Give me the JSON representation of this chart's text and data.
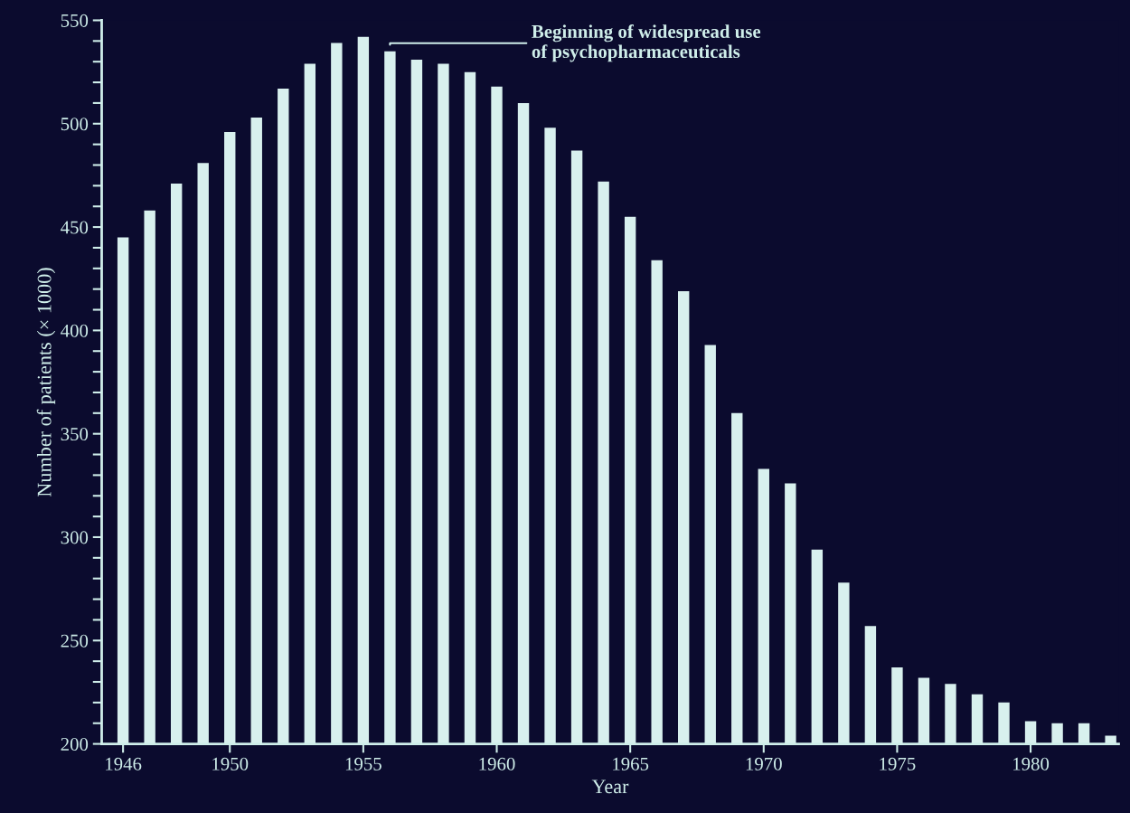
{
  "chart_data": {
    "type": "bar",
    "xlabel": "Year",
    "ylabel": "Number of patients (× 1000)",
    "x": [
      1946,
      1947,
      1948,
      1949,
      1950,
      1951,
      1952,
      1953,
      1954,
      1955,
      1956,
      1957,
      1958,
      1959,
      1960,
      1961,
      1962,
      1963,
      1964,
      1965,
      1966,
      1967,
      1968,
      1969,
      1970,
      1971,
      1972,
      1973,
      1974,
      1975,
      1976,
      1977,
      1978,
      1979,
      1980,
      1981,
      1982,
      1983
    ],
    "values": [
      445,
      458,
      471,
      481,
      496,
      503,
      517,
      529,
      539,
      542,
      535,
      531,
      529,
      525,
      518,
      510,
      498,
      487,
      472,
      455,
      434,
      419,
      393,
      360,
      333,
      326,
      294,
      278,
      257,
      237,
      232,
      229,
      224,
      220,
      211,
      210,
      210,
      204
    ],
    "color": "#d8f0ee",
    "xlim": [
      1945.2,
      1983.3
    ],
    "xticks": [
      1946,
      1950,
      1955,
      1960,
      1965,
      1970,
      1975,
      1980
    ],
    "ylim": [
      200,
      550
    ],
    "yticks": [
      200,
      {
        "value": 210,
        "label": null
      },
      {
        "value": 220,
        "label": null
      },
      {
        "value": 230,
        "label": null
      },
      {
        "value": 240,
        "label": null
      },
      250,
      {
        "value": 260,
        "label": null
      },
      {
        "value": 270,
        "label": null
      },
      {
        "value": 280,
        "label": null
      },
      {
        "value": 290,
        "label": null
      },
      300,
      {
        "value": 310,
        "label": null
      },
      {
        "value": 320,
        "label": null
      },
      {
        "value": 330,
        "label": null
      },
      {
        "value": 340,
        "label": null
      },
      350,
      {
        "value": 360,
        "label": null
      },
      {
        "value": 370,
        "label": null
      },
      {
        "value": 380,
        "label": null
      },
      {
        "value": 390,
        "label": null
      },
      400,
      {
        "value": 410,
        "label": null
      },
      {
        "value": 420,
        "label": null
      },
      {
        "value": 430,
        "label": null
      },
      {
        "value": 440,
        "label": null
      },
      450,
      {
        "value": 460,
        "label": null
      },
      {
        "value": 470,
        "label": null
      },
      {
        "value": 480,
        "label": null
      },
      {
        "value": 490,
        "label": null
      },
      500,
      {
        "value": 510,
        "label": null
      },
      {
        "value": 520,
        "label": null
      },
      {
        "value": 530,
        "label": null
      },
      {
        "value": 540,
        "label": null
      },
      550
    ],
    "annotations": [
      {
        "text": "Beginning of widespread use\nof psychopharmaceuticals",
        "x": 1956,
        "y": 535
      }
    ],
    "grid": false,
    "legend": false
  }
}
